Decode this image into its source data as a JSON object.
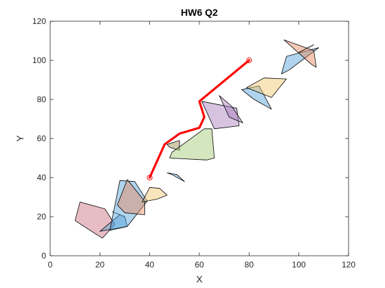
{
  "chart_data": {
    "type": "line",
    "title": "HW6 Q2",
    "xlabel": "X",
    "ylabel": "Y",
    "xlim": [
      0,
      120
    ],
    "ylim": [
      0,
      120
    ],
    "xticks": [
      0,
      20,
      40,
      60,
      80,
      100,
      120
    ],
    "yticks": [
      0,
      20,
      40,
      60,
      80,
      100,
      120
    ],
    "grid": false,
    "box": true,
    "series": [
      {
        "kind": "path",
        "color": "#ff0000",
        "points": [
          [
            40,
            40
          ],
          [
            46,
            57
          ],
          [
            52,
            62.5
          ],
          [
            60,
            65.5
          ],
          [
            62,
            71
          ],
          [
            60,
            79
          ],
          [
            80,
            100
          ]
        ]
      },
      {
        "kind": "markers",
        "marker": "circle-open",
        "color": "#ff0000",
        "points": [
          [
            40,
            40
          ],
          [
            80,
            100
          ]
        ]
      }
    ],
    "obstacles": [
      {
        "color": "#c96d7e",
        "points": [
          [
            12,
            27.5
          ],
          [
            22,
            24
          ],
          [
            26,
            16
          ],
          [
            21,
            9
          ],
          [
            10,
            18
          ]
        ]
      },
      {
        "color": "#4f9fd6",
        "points": [
          [
            20,
            12.5
          ],
          [
            31,
            15
          ],
          [
            30,
            20
          ],
          [
            25,
            22.5
          ],
          [
            28,
            21
          ]
        ]
      },
      {
        "color": "#4f9fd6",
        "points": [
          [
            28,
            38.5
          ],
          [
            34,
            38
          ],
          [
            39,
            28
          ],
          [
            31,
            15
          ],
          [
            24,
            13
          ]
        ]
      },
      {
        "color": "#e8845a",
        "points": [
          [
            31,
            39
          ],
          [
            38,
            28
          ],
          [
            38,
            21
          ],
          [
            30,
            22
          ],
          [
            27,
            26
          ]
        ]
      },
      {
        "color": "#f2c56b",
        "points": [
          [
            40,
            35
          ],
          [
            44,
            34.5
          ],
          [
            47,
            31
          ],
          [
            43,
            29
          ],
          [
            37,
            27.5
          ]
        ]
      },
      {
        "color": "#4f9fd6",
        "points": [
          [
            47,
            42.5
          ],
          [
            51,
            41.5
          ],
          [
            54,
            38
          ],
          [
            49,
            41.5
          ]
        ]
      },
      {
        "color": "#9c8a4a",
        "points": [
          [
            47,
            57
          ],
          [
            52,
            59
          ],
          [
            52,
            54
          ],
          [
            48,
            55.5
          ]
        ]
      },
      {
        "color": "#9fc76d",
        "points": [
          [
            49,
            53
          ],
          [
            62,
            65
          ],
          [
            65,
            65
          ],
          [
            66,
            50
          ],
          [
            63,
            49
          ],
          [
            48,
            50
          ]
        ]
      },
      {
        "color": "#a67abd",
        "points": [
          [
            61,
            79
          ],
          [
            75,
            75.5
          ],
          [
            76,
            66.5
          ],
          [
            66,
            65
          ]
        ]
      },
      {
        "color": "#a67abd",
        "points": [
          [
            68,
            82
          ],
          [
            73,
            76.5
          ],
          [
            77.5,
            68
          ],
          [
            72,
            71
          ]
        ]
      },
      {
        "color": "#4f9fd6",
        "points": [
          [
            77,
            85
          ],
          [
            84,
            87
          ],
          [
            89,
            75
          ],
          [
            82,
            80
          ]
        ]
      },
      {
        "color": "#f2c56b",
        "points": [
          [
            79,
            86
          ],
          [
            86,
            91
          ],
          [
            95,
            90.5
          ],
          [
            89,
            81
          ],
          [
            80,
            85.5
          ]
        ]
      },
      {
        "color": "#4f9fd6",
        "points": [
          [
            95,
            102
          ],
          [
            108,
            106.5
          ],
          [
            96,
            95
          ],
          [
            93,
            93
          ]
        ]
      },
      {
        "color": "#e8845a",
        "points": [
          [
            94,
            110.5
          ],
          [
            106,
            105
          ],
          [
            107,
            96.5
          ],
          [
            105,
            98
          ]
        ]
      },
      {
        "color": "#e8845a",
        "points": [
          [
            100,
            104
          ],
          [
            106,
            108
          ]
        ]
      }
    ]
  }
}
